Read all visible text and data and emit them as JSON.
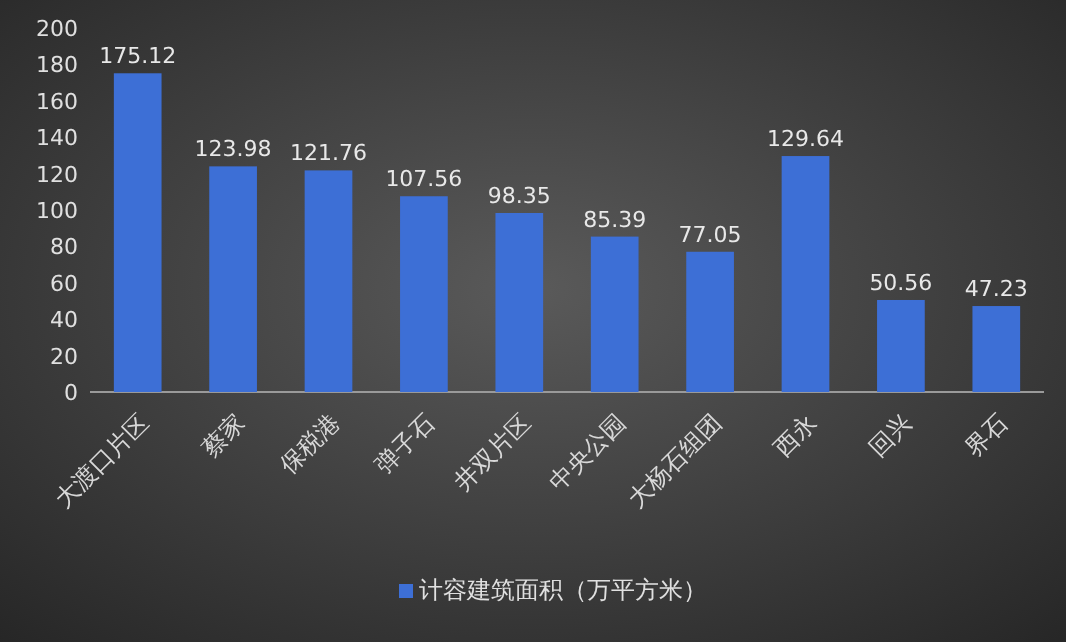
{
  "chart_data": {
    "type": "bar",
    "categories": [
      "大渡口片区",
      "蔡家",
      "保税港",
      "弹子石",
      "井双片区",
      "中央公园",
      "大杨石组团",
      "西永",
      "回兴",
      "界石"
    ],
    "series": [
      {
        "name": "计容建筑面积（万平方米）",
        "color": "#3d6fd6",
        "values": [
          175.12,
          123.98,
          121.76,
          107.56,
          98.35,
          85.39,
          77.05,
          129.64,
          50.56,
          47.23
        ]
      }
    ],
    "ylim": [
      0,
      200
    ],
    "yticks": [
      0,
      20,
      40,
      60,
      80,
      100,
      120,
      140,
      160,
      180,
      200
    ],
    "data_labels": true,
    "legend": "bottom"
  }
}
